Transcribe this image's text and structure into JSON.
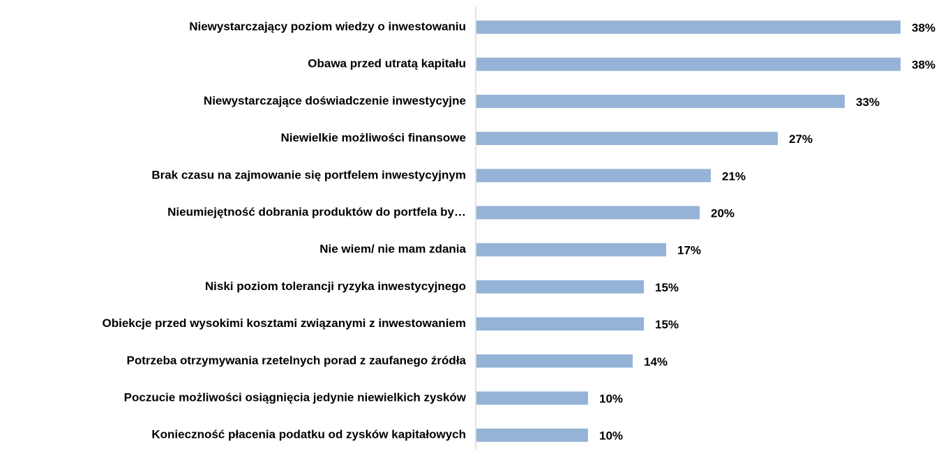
{
  "chart_data": {
    "type": "bar",
    "orientation": "horizontal",
    "categories": [
      "Niewystarczający poziom wiedzy o inwestowaniu",
      "Obawa przed utratą kapitału",
      "Niewystarczające doświadczenie inwestycyjne",
      "Niewielkie możliwości finansowe",
      "Brak czasu na zajmowanie się portfelem inwestycyjnym",
      "Nieumiejętność dobrania produktów do portfela by…",
      "Nie wiem/ nie mam zdania",
      "Niski poziom tolerancji ryzyka inwestycyjnego",
      "Obiekcje przed wysokimi kosztami związanymi z inwestowaniem",
      "Potrzeba otrzymywania rzetelnych porad z zaufanego źródła",
      "Poczucie możliwości osiągnięcia jedynie niewielkich zysków",
      "Konieczność płacenia podatku od zysków kapitałowych"
    ],
    "values": [
      38,
      38,
      33,
      27,
      21,
      20,
      17,
      15,
      15,
      14,
      10,
      10
    ],
    "value_labels": [
      "38%",
      "38%",
      "33%",
      "27%",
      "21%",
      "20%",
      "17%",
      "15%",
      "15%",
      "14%",
      "10%",
      "10%"
    ],
    "color": "#95b3d7"
  }
}
